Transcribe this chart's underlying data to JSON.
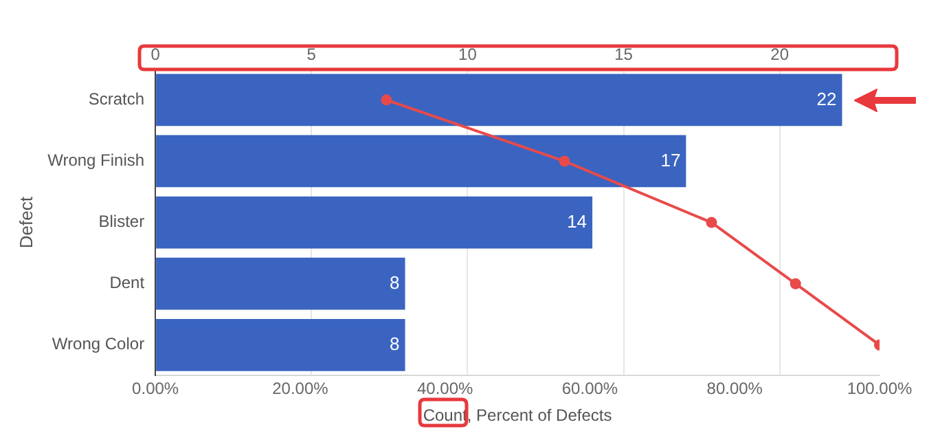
{
  "chart_data": {
    "type": "bar",
    "orientation": "horizontal",
    "xlabel": "Count, Percent of Defects",
    "ylabel": "Defect",
    "categories": [
      "Scratch",
      "Wrong Finish",
      "Blister",
      "Dent",
      "Wrong Color"
    ],
    "series": [
      {
        "axis": "x2",
        "color": "#3a64c0",
        "values": [
          22,
          17,
          14,
          8,
          8
        ],
        "value_labels": [
          "22",
          "17",
          "14",
          "8",
          "8"
        ]
      },
      {
        "type": "line",
        "color": "#e84a4a",
        "values": [
          31.9,
          56.5,
          76.8,
          88.4,
          100
        ],
        "marker": "circle",
        "line_style": "solid"
      }
    ],
    "xlim": [
      0,
      100
    ],
    "xticks": [
      {
        "value": 0,
        "label": "0.00%"
      },
      {
        "value": 20,
        "label": "20.00%"
      },
      {
        "value": 40,
        "label": "40.00%"
      },
      {
        "value": 60,
        "label": "60.00%"
      },
      {
        "value": 80,
        "label": "80.00%"
      },
      {
        "value": 100,
        "label": "100.00%"
      }
    ],
    "x2lim": [
      0,
      23.2
    ],
    "x2ticks": [
      0,
      5,
      10,
      15,
      20
    ],
    "grid": "x",
    "legend": false
  }
}
